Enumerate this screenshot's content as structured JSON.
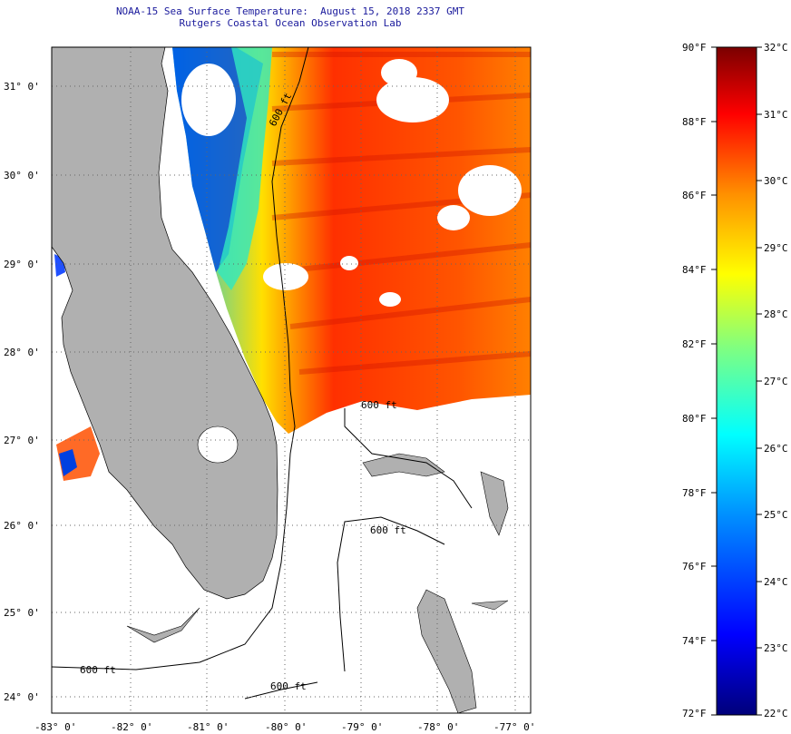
{
  "title": {
    "line1": "NOAA-15 Sea Surface Temperature:  August 15, 2018 2337 GMT",
    "line2": "Rutgers Coastal Ocean Observation Lab"
  },
  "map": {
    "lon_labels": [
      "-83° 0'",
      "-82° 0'",
      "-81° 0'",
      "-80° 0'",
      "-79° 0'",
      "-78° 0'",
      "-77° 0'"
    ],
    "lat_labels": [
      "31° 0'",
      "30° 0'",
      "29° 0'",
      "28° 0'",
      "27° 0'",
      "26° 0'",
      "25° 0'",
      "24° 0'"
    ],
    "isobath_labels": [
      "600 ft",
      "600 ft",
      "600 ft",
      "600 ft",
      "600 ft"
    ],
    "colors": {
      "land": "#b0b0b0",
      "grid": "#555555",
      "frame": "#000000"
    }
  },
  "colorbar": {
    "fahrenheit": [
      "90°F",
      "88°F",
      "86°F",
      "84°F",
      "82°F",
      "80°F",
      "78°F",
      "76°F",
      "74°F",
      "72°F"
    ],
    "celsius": [
      "32°C",
      "31°C",
      "30°C",
      "29°C",
      "28°C",
      "27°C",
      "26°C",
      "25°C",
      "24°C",
      "23°C",
      "22°C"
    ],
    "colors": [
      "#000080",
      "#0000ff",
      "#0080ff",
      "#00ffff",
      "#80ff80",
      "#ffff00",
      "#ff8000",
      "#ff0000",
      "#800000"
    ]
  }
}
